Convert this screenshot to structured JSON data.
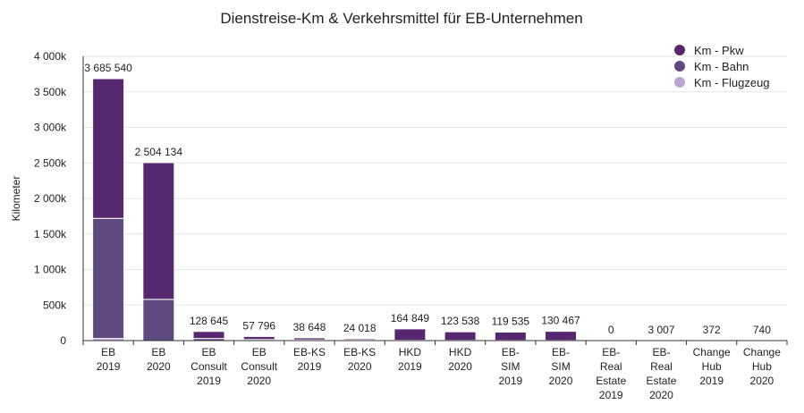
{
  "chart_data": {
    "type": "bar",
    "stacked": true,
    "title": "Dienstreise-Km & Verkehrsmittel für EB-Unternehmen",
    "xlabel": "",
    "ylabel": "Kilometer",
    "ylim": [
      0,
      4000000
    ],
    "yticks": [
      "0",
      "500k",
      "1 000k",
      "1 500k",
      "2 000k",
      "2 500k",
      "3 000k",
      "3 500k",
      "4 000k"
    ],
    "ytick_values": [
      0,
      500000,
      1000000,
      1500000,
      2000000,
      2500000,
      3000000,
      3500000,
      4000000
    ],
    "grid": true,
    "legend_position": "top-right",
    "categories": [
      [
        "EB",
        "2019"
      ],
      [
        "EB",
        "2020"
      ],
      [
        "EB",
        "Consult",
        "2019"
      ],
      [
        "EB",
        "Consult",
        "2020"
      ],
      [
        "EB-KS",
        "2019"
      ],
      [
        "EB-KS",
        "2020"
      ],
      [
        "HKD",
        "2019"
      ],
      [
        "HKD",
        "2020"
      ],
      [
        "EB-",
        "SIM",
        "2019"
      ],
      [
        "EB-",
        "SIM",
        "2020"
      ],
      [
        "EB-",
        "Real",
        "Estate",
        "2019"
      ],
      [
        "EB-",
        "Real",
        "Estate",
        "2020"
      ],
      [
        "Change",
        "Hub",
        "2019"
      ],
      [
        "Change",
        "Hub",
        "2020"
      ]
    ],
    "totals": [
      "3 685 540",
      "2 504 134",
      "128 645",
      "57 796",
      "38 648",
      "24 018",
      "164 849",
      "123 538",
      "119 535",
      "130 467",
      "0",
      "3 007",
      "372",
      "740"
    ],
    "series": [
      {
        "name": "Km - Flugzeug",
        "color": "#b8a6cf",
        "values": [
          30000,
          0,
          0,
          0,
          0,
          0,
          0,
          0,
          0,
          0,
          0,
          0,
          0,
          0
        ]
      },
      {
        "name": "Km - Bahn",
        "color": "#5e4a7f",
        "values": [
          1690000,
          580000,
          30000,
          15000,
          10000,
          6000,
          5000,
          4000,
          3000,
          3000,
          0,
          1000,
          372,
          740
        ]
      },
      {
        "name": "Km - Pkw",
        "color": "#57276f",
        "values": [
          1965540,
          1924134,
          98645,
          42796,
          28648,
          18018,
          159849,
          119538,
          116535,
          127467,
          0,
          2007,
          0,
          0
        ]
      }
    ],
    "legend_order": [
      "Km - Pkw",
      "Km - Bahn",
      "Km - Flugzeug"
    ]
  }
}
